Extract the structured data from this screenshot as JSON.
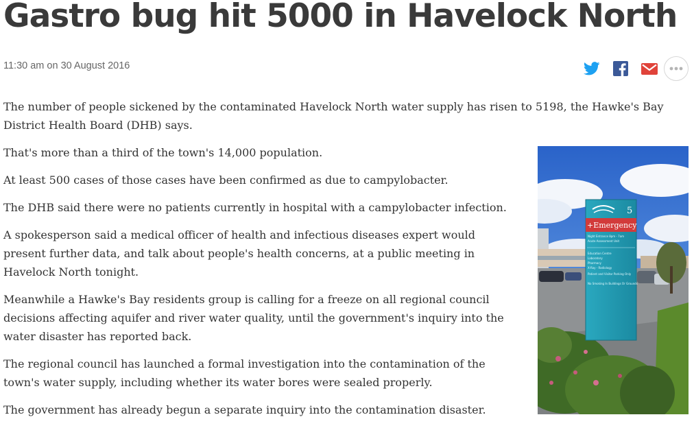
{
  "headline": "Gastro bug hit 5000 in Havelock North",
  "dateline": "11:30 am on 30 August 2016",
  "share": {
    "icons": [
      "twitter-icon",
      "facebook-icon",
      "email-icon",
      "more-icon"
    ],
    "colors": {
      "twitter": "#1da1f2",
      "facebook": "#3b5998",
      "email": "#e0433a"
    }
  },
  "article": {
    "paragraphs": [
      "The number of people sickened by the contaminated Havelock North water supply has risen to 5198, the Hawke's Bay District Health Board (DHB) says.",
      "That's more than a third of the town's 14,000 population.",
      "At least 500 cases of those cases have been confirmed as due to campylobacter.",
      "The DHB said there were no patients currently in hospital with a campylobacter infection.",
      "A spokesperson said a medical officer of health and infectious diseases expert would present further data, and talk about people's health concerns, at a public meeting in Havelock North tonight.",
      "Meanwhile a Hawke's Bay residents group is calling for a freeze on all regional council decisions affecting aquifer and river water quality, until the government's inquiry into the water disaster has reported back.",
      "The regional council has launched a formal investigation into the contamination of the town's water supply, including whether its water bores were sealed properly.",
      "The government has already begun a separate inquiry into the contamination disaster."
    ]
  },
  "photo": {
    "sign_number": "5",
    "sign_heading": "+Emergency",
    "sign_lines": [
      "Night Entrance 8pm - 7am",
      "Acute Assessment Unit",
      "Education Centre",
      "Laboratory",
      "Pharmacy",
      "X-Ray - Radiology",
      "Patient and Visitor Parking Only",
      "No Smoking In Buildings Or Grounds"
    ]
  }
}
